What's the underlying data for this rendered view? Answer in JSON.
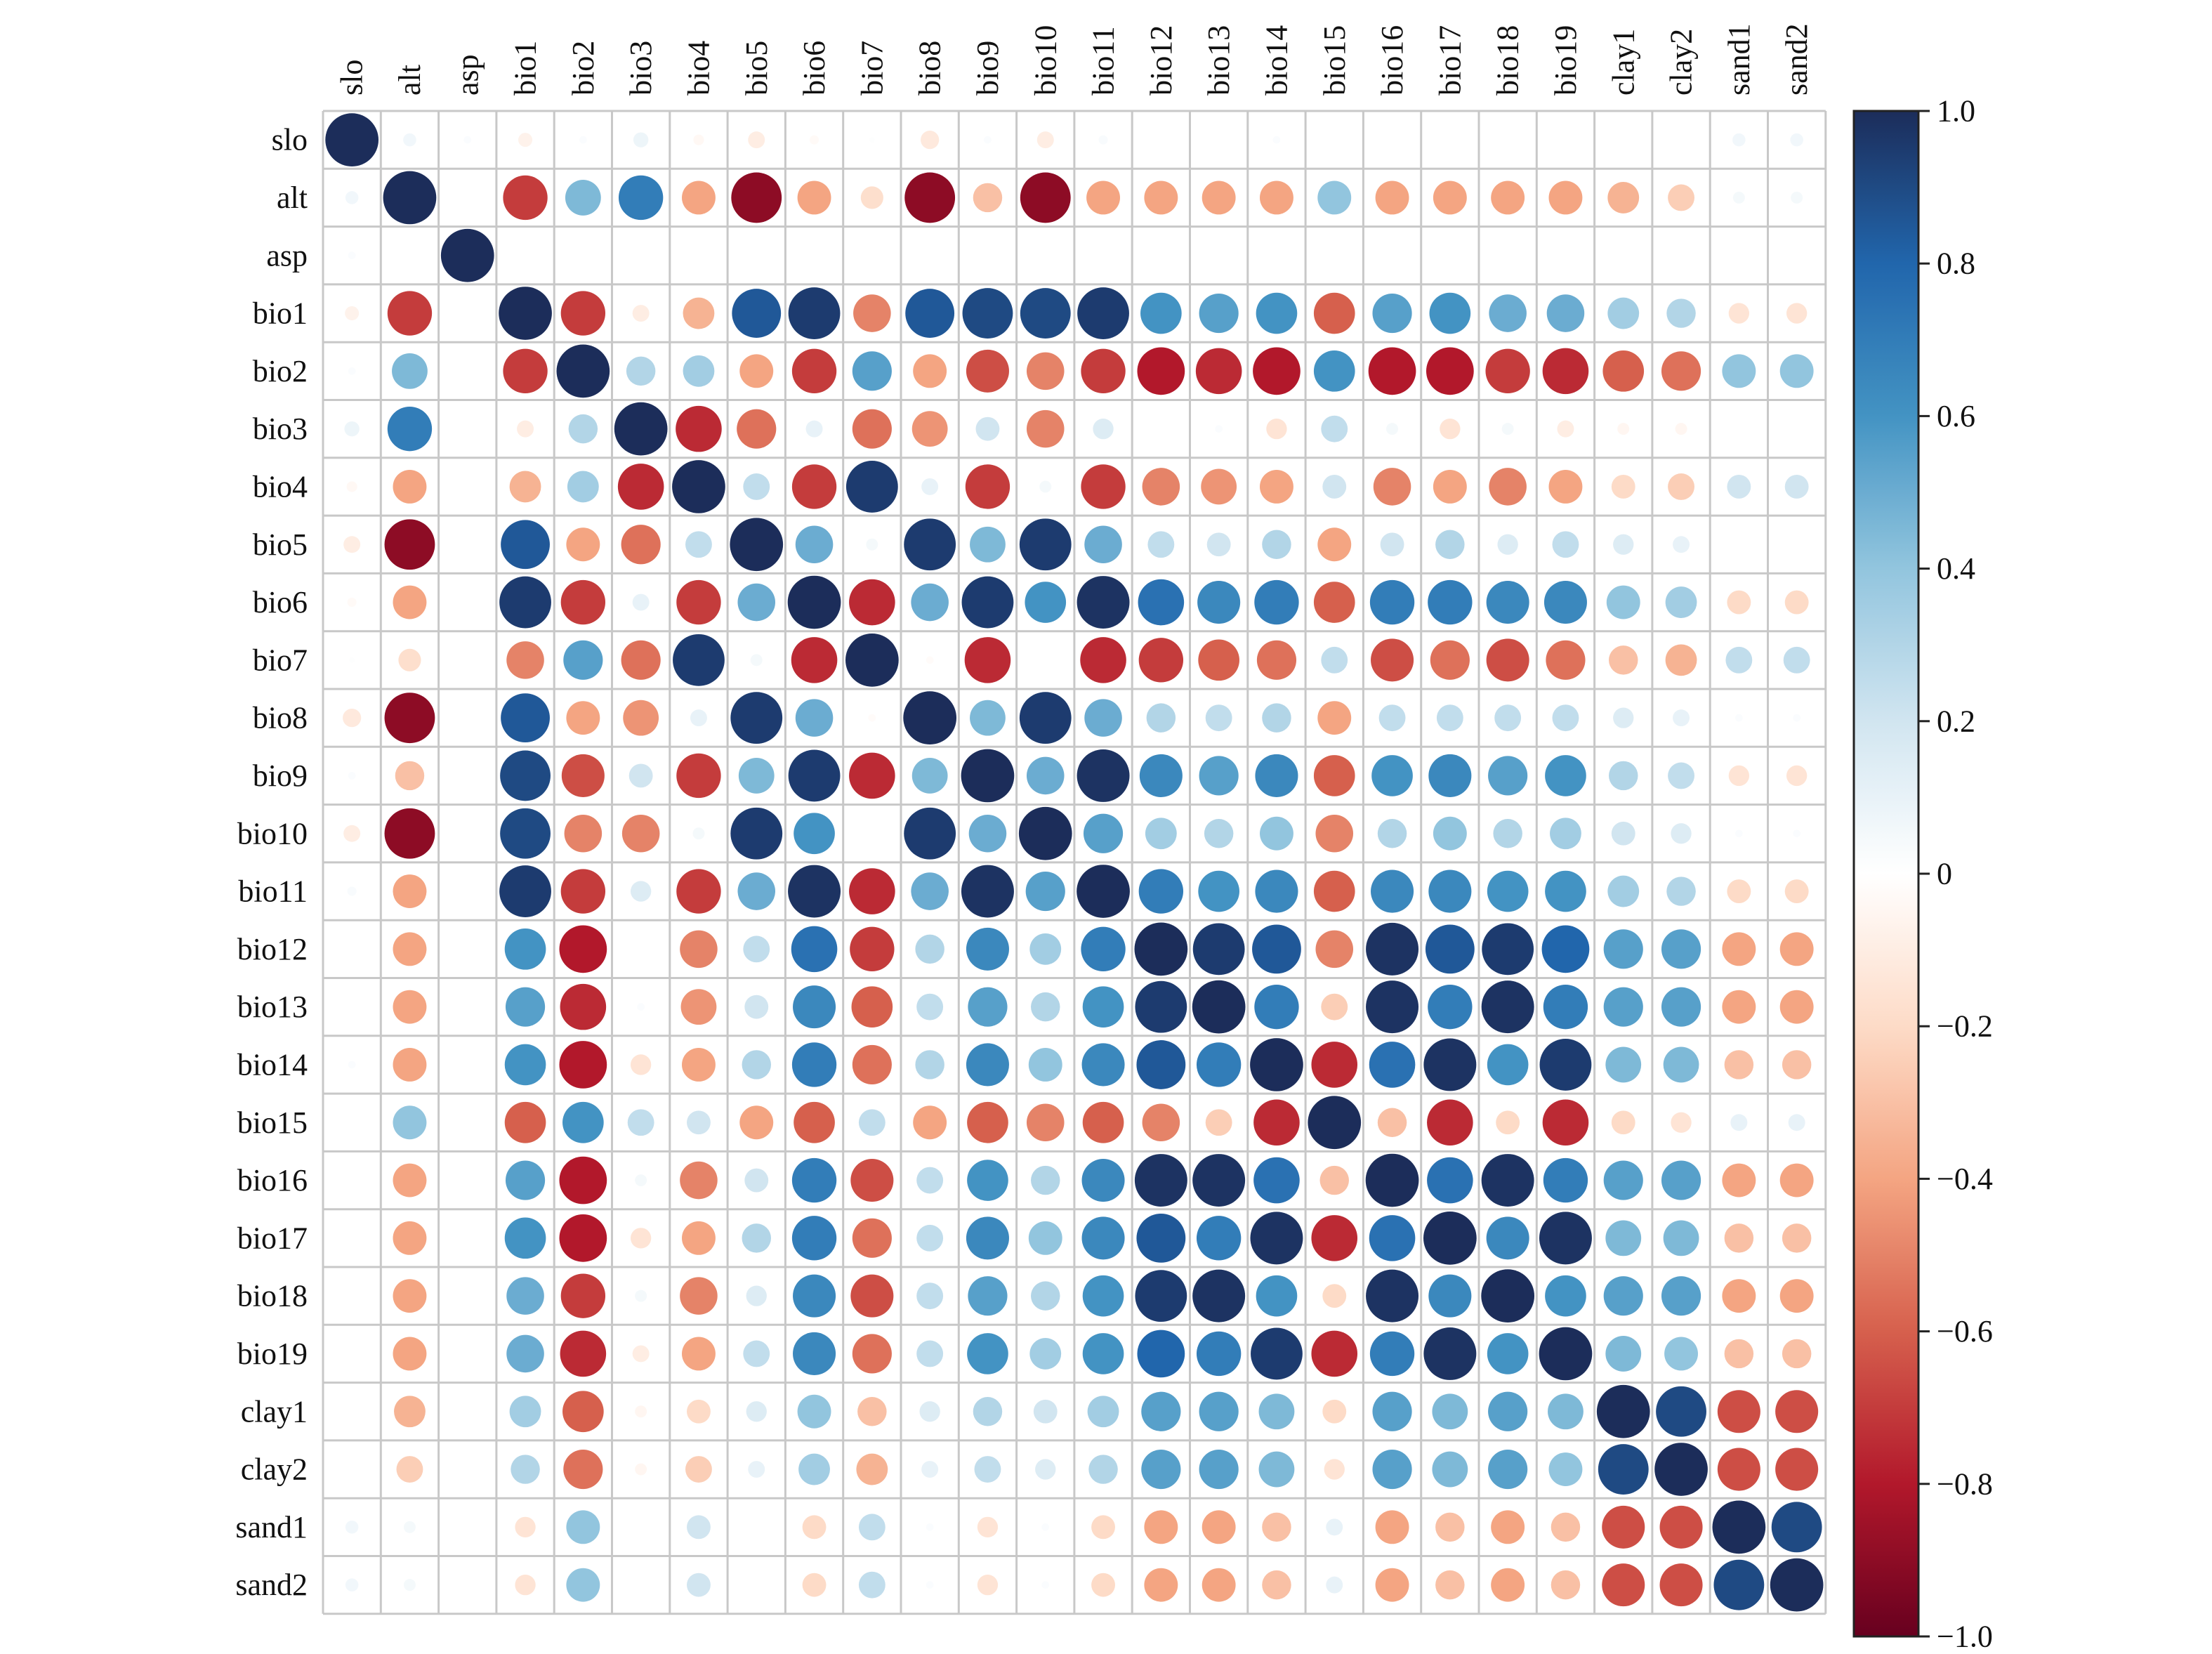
{
  "chart_data": {
    "type": "heatmap",
    "style": "circle-correlation-matrix",
    "title": "",
    "xlabel": "",
    "ylabel": "",
    "variables": [
      "slo",
      "alt",
      "asp",
      "bio1",
      "bio2",
      "bio3",
      "bio4",
      "bio5",
      "bio6",
      "bio7",
      "bio8",
      "bio9",
      "bio10",
      "bio11",
      "bio12",
      "bio13",
      "bio14",
      "bio15",
      "bio16",
      "bio17",
      "bio18",
      "bio19",
      "clay1",
      "clay2",
      "sand1",
      "sand2"
    ],
    "matrix": [
      [
        1.0,
        0.06,
        0.02,
        -0.07,
        0.02,
        0.08,
        -0.04,
        -0.1,
        -0.03,
        0.01,
        -0.12,
        0.02,
        -0.1,
        0.03,
        0.0,
        0.0,
        0.02,
        0.0,
        0.0,
        0.0,
        0.0,
        0.0,
        0.0,
        0.0,
        0.06,
        0.06
      ],
      [
        0.06,
        1.0,
        0.0,
        -0.7,
        0.45,
        0.7,
        -0.4,
        -0.9,
        -0.4,
        -0.18,
        -0.9,
        -0.3,
        -0.9,
        -0.4,
        -0.4,
        -0.4,
        -0.4,
        0.4,
        -0.4,
        -0.4,
        -0.4,
        -0.4,
        -0.35,
        -0.25,
        0.05,
        0.05
      ],
      [
        0.02,
        0.0,
        1.0,
        0.0,
        0.0,
        0.0,
        0.0,
        0.0,
        0.0,
        0.0,
        0.0,
        0.0,
        0.0,
        0.0,
        0.0,
        0.0,
        0.0,
        0.0,
        0.0,
        0.0,
        0.0,
        0.0,
        0.0,
        0.0,
        0.0,
        0.0
      ],
      [
        -0.07,
        -0.7,
        0.0,
        1.0,
        -0.7,
        -0.1,
        -0.35,
        0.85,
        0.95,
        -0.5,
        0.85,
        0.9,
        0.9,
        0.95,
        0.6,
        0.55,
        0.6,
        -0.6,
        0.55,
        0.6,
        0.5,
        0.5,
        0.35,
        0.3,
        -0.15,
        -0.15
      ],
      [
        0.02,
        0.45,
        0.0,
        -0.7,
        1.0,
        0.3,
        0.35,
        -0.4,
        -0.7,
        0.55,
        -0.4,
        -0.65,
        -0.5,
        -0.7,
        -0.8,
        -0.75,
        -0.8,
        0.6,
        -0.8,
        -0.8,
        -0.7,
        -0.75,
        -0.6,
        -0.55,
        0.4,
        0.4
      ],
      [
        0.08,
        0.7,
        0.0,
        -0.1,
        0.3,
        1.0,
        -0.75,
        -0.55,
        0.1,
        -0.55,
        -0.45,
        0.2,
        -0.5,
        0.15,
        0.0,
        0.02,
        -0.15,
        0.25,
        0.05,
        -0.15,
        0.05,
        -0.1,
        -0.05,
        -0.05,
        0.0,
        0.0
      ],
      [
        -0.04,
        -0.4,
        0.0,
        -0.35,
        0.35,
        -0.75,
        1.0,
        0.25,
        -0.7,
        0.95,
        0.1,
        -0.7,
        0.05,
        -0.7,
        -0.5,
        -0.45,
        -0.4,
        0.2,
        -0.5,
        -0.4,
        -0.5,
        -0.4,
        -0.2,
        -0.25,
        0.2,
        0.2
      ],
      [
        -0.1,
        -0.9,
        0.0,
        0.85,
        -0.4,
        -0.55,
        0.25,
        1.0,
        0.5,
        0.05,
        0.95,
        0.45,
        0.95,
        0.5,
        0.25,
        0.2,
        0.3,
        -0.4,
        0.2,
        0.3,
        0.15,
        0.25,
        0.15,
        0.1,
        0.0,
        0.0
      ],
      [
        -0.03,
        -0.4,
        0.0,
        0.95,
        -0.7,
        0.1,
        -0.7,
        0.5,
        1.0,
        -0.75,
        0.5,
        0.95,
        0.6,
        0.98,
        0.75,
        0.65,
        0.7,
        -0.6,
        0.7,
        0.7,
        0.65,
        0.65,
        0.4,
        0.35,
        -0.2,
        -0.2
      ],
      [
        0.01,
        -0.18,
        0.0,
        -0.5,
        0.55,
        -0.55,
        0.95,
        0.05,
        -0.75,
        1.0,
        -0.02,
        -0.75,
        0.0,
        -0.75,
        -0.7,
        -0.6,
        -0.55,
        0.25,
        -0.65,
        -0.55,
        -0.65,
        -0.55,
        -0.3,
        -0.35,
        0.25,
        0.25
      ],
      [
        -0.12,
        -0.9,
        0.0,
        0.85,
        -0.4,
        -0.45,
        0.1,
        0.95,
        0.5,
        -0.02,
        1.0,
        0.45,
        0.95,
        0.5,
        0.3,
        0.25,
        0.3,
        -0.4,
        0.25,
        0.25,
        0.25,
        0.25,
        0.15,
        0.1,
        0.02,
        0.02
      ],
      [
        0.02,
        -0.3,
        0.0,
        0.9,
        -0.65,
        0.2,
        -0.7,
        0.45,
        0.95,
        -0.75,
        0.45,
        1.0,
        0.5,
        0.98,
        0.65,
        0.55,
        0.65,
        -0.6,
        0.6,
        0.65,
        0.55,
        0.6,
        0.3,
        0.25,
        -0.15,
        -0.15
      ],
      [
        -0.1,
        -0.9,
        0.0,
        0.9,
        -0.5,
        -0.5,
        0.05,
        0.95,
        0.6,
        0.0,
        0.95,
        0.5,
        1.0,
        0.55,
        0.35,
        0.3,
        0.4,
        -0.5,
        0.3,
        0.4,
        0.3,
        0.35,
        0.2,
        0.15,
        0.02,
        0.02
      ],
      [
        0.03,
        -0.4,
        0.0,
        0.95,
        -0.7,
        0.15,
        -0.7,
        0.5,
        0.98,
        -0.75,
        0.5,
        0.98,
        0.55,
        1.0,
        0.7,
        0.6,
        0.65,
        -0.6,
        0.65,
        0.65,
        0.6,
        0.6,
        0.35,
        0.3,
        -0.2,
        -0.2
      ],
      [
        0.0,
        -0.4,
        0.0,
        0.6,
        -0.8,
        0.0,
        -0.5,
        0.25,
        0.75,
        -0.7,
        0.3,
        0.65,
        0.35,
        0.7,
        1.0,
        0.95,
        0.85,
        -0.5,
        0.98,
        0.85,
        0.95,
        0.8,
        0.55,
        0.55,
        -0.4,
        -0.4
      ],
      [
        0.0,
        -0.4,
        0.0,
        0.55,
        -0.75,
        0.02,
        -0.45,
        0.2,
        0.65,
        -0.6,
        0.25,
        0.55,
        0.3,
        0.6,
        0.95,
        1.0,
        0.7,
        -0.25,
        0.98,
        0.7,
        0.98,
        0.7,
        0.55,
        0.55,
        -0.4,
        -0.4
      ],
      [
        0.02,
        -0.4,
        0.0,
        0.6,
        -0.8,
        -0.15,
        -0.4,
        0.3,
        0.7,
        -0.55,
        0.3,
        0.65,
        0.4,
        0.65,
        0.85,
        0.7,
        1.0,
        -0.75,
        0.75,
        0.98,
        0.6,
        0.95,
        0.45,
        0.45,
        -0.3,
        -0.3
      ],
      [
        0.0,
        0.4,
        0.0,
        -0.6,
        0.6,
        0.25,
        0.2,
        -0.4,
        -0.6,
        0.25,
        -0.4,
        -0.6,
        -0.5,
        -0.6,
        -0.5,
        -0.25,
        -0.75,
        1.0,
        -0.3,
        -0.75,
        -0.2,
        -0.75,
        -0.2,
        -0.15,
        0.1,
        0.1
      ],
      [
        0.0,
        -0.4,
        0.0,
        0.55,
        -0.8,
        0.05,
        -0.5,
        0.2,
        0.7,
        -0.65,
        0.25,
        0.6,
        0.3,
        0.65,
        0.98,
        0.98,
        0.75,
        -0.3,
        1.0,
        0.75,
        0.98,
        0.7,
        0.55,
        0.55,
        -0.4,
        -0.4
      ],
      [
        0.0,
        -0.4,
        0.0,
        0.6,
        -0.8,
        -0.15,
        -0.4,
        0.3,
        0.7,
        -0.55,
        0.25,
        0.65,
        0.4,
        0.65,
        0.85,
        0.7,
        0.98,
        -0.75,
        0.75,
        1.0,
        0.65,
        0.98,
        0.45,
        0.45,
        -0.3,
        -0.3
      ],
      [
        0.0,
        -0.4,
        0.0,
        0.5,
        -0.7,
        0.05,
        -0.5,
        0.15,
        0.65,
        -0.65,
        0.25,
        0.55,
        0.3,
        0.6,
        0.95,
        0.98,
        0.6,
        -0.2,
        0.98,
        0.65,
        1.0,
        0.6,
        0.55,
        0.55,
        -0.4,
        -0.4
      ],
      [
        0.0,
        -0.4,
        0.0,
        0.5,
        -0.75,
        -0.1,
        -0.4,
        0.25,
        0.65,
        -0.55,
        0.25,
        0.6,
        0.35,
        0.6,
        0.8,
        0.7,
        0.95,
        -0.75,
        0.7,
        0.98,
        0.6,
        1.0,
        0.45,
        0.4,
        -0.3,
        -0.3
      ],
      [
        0.0,
        -0.35,
        0.0,
        0.35,
        -0.6,
        -0.05,
        -0.2,
        0.15,
        0.4,
        -0.3,
        0.15,
        0.3,
        0.2,
        0.35,
        0.55,
        0.55,
        0.45,
        -0.2,
        0.55,
        0.45,
        0.55,
        0.45,
        1.0,
        0.9,
        -0.65,
        -0.65
      ],
      [
        0.0,
        -0.25,
        0.0,
        0.3,
        -0.55,
        -0.05,
        -0.25,
        0.1,
        0.35,
        -0.35,
        0.1,
        0.25,
        0.15,
        0.3,
        0.55,
        0.55,
        0.45,
        -0.15,
        0.55,
        0.45,
        0.55,
        0.4,
        0.9,
        1.0,
        -0.65,
        -0.65
      ],
      [
        0.06,
        0.05,
        0.0,
        -0.15,
        0.4,
        0.0,
        0.2,
        0.0,
        -0.2,
        0.25,
        0.02,
        -0.15,
        0.02,
        -0.2,
        -0.4,
        -0.4,
        -0.3,
        0.1,
        -0.4,
        -0.3,
        -0.4,
        -0.3,
        -0.65,
        -0.65,
        1.0,
        0.9
      ],
      [
        0.06,
        0.05,
        0.0,
        -0.15,
        0.4,
        0.0,
        0.2,
        0.0,
        -0.2,
        0.25,
        0.02,
        -0.15,
        0.02,
        -0.2,
        -0.4,
        -0.4,
        -0.3,
        0.1,
        -0.4,
        -0.3,
        -0.4,
        -0.3,
        -0.65,
        -0.65,
        0.9,
        1.0
      ]
    ],
    "colorbar": {
      "range": [
        -1.0,
        1.0
      ],
      "ticks": [
        "1.0",
        "0.8",
        "0.6",
        "0.4",
        "0.2",
        "0",
        "−0.2",
        "−0.4",
        "−0.6",
        "−0.8",
        "−1.0"
      ],
      "tick_values": [
        1.0,
        0.8,
        0.6,
        0.4,
        0.2,
        0.0,
        -0.2,
        -0.4,
        -0.6,
        -0.8,
        -1.0
      ],
      "colormap": [
        "#67001f",
        "#b2182b",
        "#d6604d",
        "#f4a582",
        "#fddbc7",
        "#ffffff",
        "#d1e5f0",
        "#92c5de",
        "#4393c3",
        "#2166ac",
        "#1c2d5a"
      ]
    },
    "grid": true,
    "legend": "colorbar-right"
  }
}
